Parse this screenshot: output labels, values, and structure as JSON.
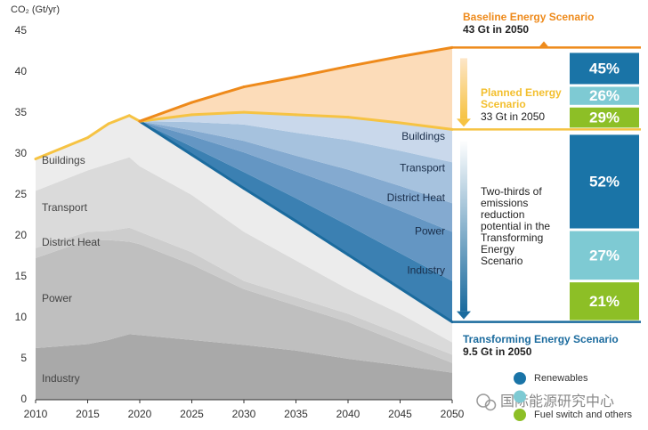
{
  "chart_data": [
    {
      "type": "area",
      "y_label": "CO₂ (Gt/yr)",
      "x": [
        2010,
        2015,
        2017,
        2019,
        2020,
        2025,
        2030,
        2035,
        2040,
        2045,
        2050
      ],
      "xlim": [
        2010,
        2050
      ],
      "xticks": [
        2010,
        2015,
        2020,
        2025,
        2030,
        2035,
        2040,
        2045,
        2050
      ],
      "ylim": [
        0,
        45
      ],
      "yticks": [
        0,
        5,
        10,
        15,
        20,
        25,
        30,
        35,
        40,
        45
      ],
      "series": [
        {
          "name": "Industry",
          "color": "#a9a9a9",
          "values": [
            6.3,
            6.8,
            7.3,
            8.0,
            7.9,
            7.3,
            6.7,
            6.0,
            5.0,
            4.2,
            3.3
          ]
        },
        {
          "name": "Power",
          "color": "#bfbfbf",
          "values": [
            11.0,
            12.7,
            12.2,
            11.3,
            11.1,
            9.2,
            6.8,
            5.5,
            4.5,
            2.8,
            1.2
          ]
        },
        {
          "name": "District Heat",
          "color": "#cdcdcd",
          "values": [
            1.2,
            1.0,
            1.1,
            1.7,
            1.5,
            1.5,
            1.0,
            1.0,
            1.0,
            1.0,
            1.0
          ]
        },
        {
          "name": "Transport",
          "color": "#dadada",
          "values": [
            7.0,
            7.5,
            8.2,
            8.6,
            8.0,
            7.0,
            6.0,
            4.5,
            3.0,
            2.5,
            1.5
          ]
        },
        {
          "name": "Buildings",
          "color": "#ececec",
          "line": "#1b6b9e",
          "values": [
            3.9,
            4.0,
            4.9,
            5.1,
            5.5,
            4.9,
            5.3,
            4.8,
            4.2,
            3.1,
            2.5
          ]
        },
        {
          "name": "Industry",
          "color": "#3b80b2",
          "values": [
            null,
            null,
            null,
            null,
            0,
            1.0,
            2.0,
            2.8,
            3.6,
            4.3,
            5.0
          ]
        },
        {
          "name": "Power",
          "color": "#6496c3",
          "values": [
            null,
            null,
            null,
            null,
            0,
            1.3,
            2.4,
            3.3,
            4.3,
            5.2,
            6.0
          ]
        },
        {
          "name": "District Heat",
          "color": "#84aad0",
          "values": [
            null,
            null,
            null,
            null,
            0,
            0.7,
            1.4,
            1.9,
            2.5,
            3.0,
            3.5
          ]
        },
        {
          "name": "Transport",
          "color": "#a6c2de",
          "values": [
            null,
            null,
            null,
            null,
            0,
            1.0,
            2.0,
            2.8,
            3.6,
            4.3,
            5.0
          ]
        },
        {
          "name": "Buildings",
          "color": "#c9d8eb",
          "line": "#f6c343",
          "values": [
            null,
            null,
            null,
            null,
            0,
            0.9,
            1.5,
            2.2,
            2.8,
            3.4,
            4.0
          ]
        },
        {
          "name": null,
          "color": "#fcdcb9",
          "line": "#ee8a1b",
          "values": [
            null,
            null,
            null,
            null,
            0,
            1.5,
            3.1,
            4.6,
            6.2,
            8.1,
            10.0
          ]
        }
      ],
      "annotations": {
        "baseline": "Baseline Energy Scenario",
        "baseline_value": "43 Gt in 2050",
        "planned": "Planned Energy Scenario",
        "planned_value": "33 Gt in 2050",
        "potential": "Two-thirds of emissions reduction potential in the Transforming Energy Scenario",
        "transforming": "Transforming Energy Scenario",
        "transforming_value": "9.5 Gt in 2050"
      }
    },
    {
      "type": "share-bars",
      "series": [
        {
          "name": "Renewables",
          "color": "#1a74a7",
          "values": [
            45,
            52
          ],
          "value_labels": [
            "45%",
            "52%"
          ]
        },
        {
          "name": null,
          "color": "#7ecad3",
          "values": [
            26,
            27
          ],
          "value_labels": [
            "26%",
            "27%"
          ]
        },
        {
          "name": "Fuel switch and others",
          "color": "#8dbf26",
          "values": [
            29,
            21
          ],
          "value_labels": [
            "29%",
            "21%"
          ]
        }
      ]
    }
  ],
  "watermark": "国际能源研究中心"
}
